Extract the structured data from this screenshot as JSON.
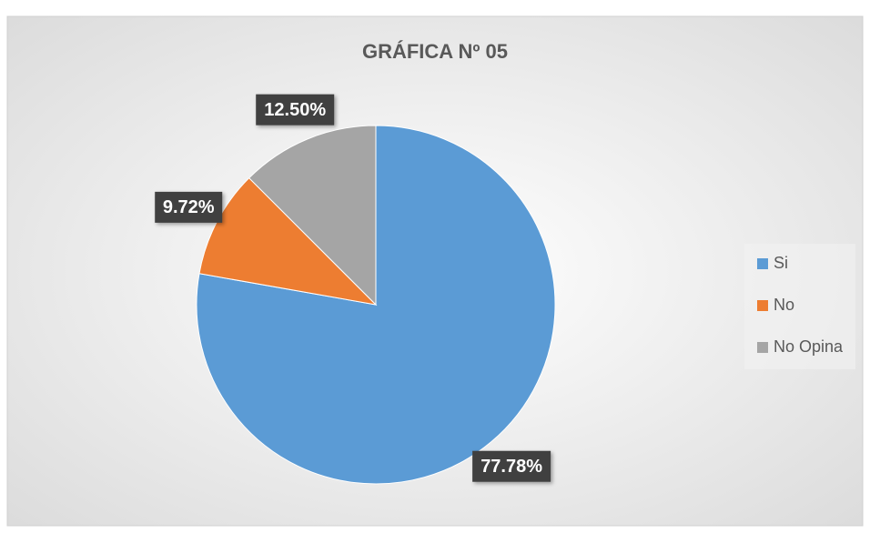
{
  "chart_data": {
    "type": "pie",
    "title": "GRÁFICA Nº 05",
    "categories": [
      "Si",
      "No",
      "No Opina"
    ],
    "values": [
      77.78,
      9.72,
      12.5
    ],
    "value_labels": [
      "77.78%",
      "9.72%",
      "12.50%"
    ],
    "colors": [
      "#5b9bd5",
      "#ed7d31",
      "#a5a5a5"
    ],
    "legend": "right"
  }
}
